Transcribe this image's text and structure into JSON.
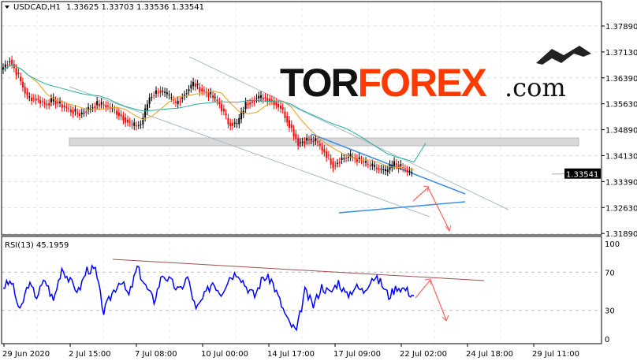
{
  "header": {
    "symbol": "USDCAD,H1",
    "ohlc": "1.33625 1.33703 1.33536 1.33541"
  },
  "rsi_header": "RSI(13) 45.1959",
  "logo": {
    "text_main": "TORFOREX",
    "text_suffix": ".com"
  },
  "colors": {
    "bull": "#000000",
    "bear": "#ff0000",
    "ma_fast": "#e5a020",
    "ma_slow": "#20b0a0",
    "rsi": "#0000ff",
    "arrow": "#ff6060",
    "triangle": "#3a8ee6",
    "channel": "#a8bac8",
    "rsi_trend": "#a05050"
  },
  "chart_data": [
    {
      "type": "line",
      "title": "USDCAD,H1",
      "ylim": [
        1.3189,
        1.3827
      ],
      "y_ticks": [
        "1.37890",
        "1.37130",
        "1.36390",
        "1.35630",
        "1.34890",
        "1.34130",
        "1.33390",
        "1.32630",
        "1.31890"
      ],
      "x_ticks": [
        "29 Jun 2020",
        "2 Jul 15:00",
        "7 Jul 08:00",
        "10 Jul 00:00",
        "14 Jul 17:00",
        "17 Jul 09:00",
        "22 Jul 02:00",
        "24 Jul 18:00",
        "29 Jul 11:00"
      ],
      "current_price": "1.33541",
      "series": [
        {
          "values": [
            1.366,
            1.369,
            1.364,
            1.358,
            1.3575,
            1.356,
            1.357,
            1.3555,
            1.354,
            1.353,
            1.3545,
            1.356,
            1.3555,
            1.354,
            1.352,
            1.3495,
            1.35,
            1.358,
            1.36,
            1.3585,
            1.356,
            1.359,
            1.362,
            1.36,
            1.3585,
            1.356,
            1.3505,
            1.35,
            1.356,
            1.3575,
            1.358,
            1.357,
            1.355,
            1.35,
            1.3445,
            1.3455,
            1.345,
            1.342,
            1.338,
            1.34,
            1.3405,
            1.3395,
            1.338,
            1.337,
            1.336,
            1.3385,
            1.337,
            1.3354
          ]
        }
      ]
    },
    {
      "type": "line",
      "title": "RSI(13) 45.1959",
      "ylim": [
        0,
        100
      ],
      "y_ticks": [
        "100",
        "70",
        "30",
        "0"
      ],
      "series": [
        {
          "values": [
            55,
            60,
            28,
            58,
            45,
            62,
            40,
            75,
            60,
            50,
            73,
            72,
            28,
            48,
            62,
            45,
            75,
            55,
            40,
            68,
            60,
            50,
            65,
            30,
            45,
            60,
            48,
            65,
            70,
            55,
            45,
            65,
            62,
            40,
            18,
            8,
            50,
            35,
            55,
            48,
            60,
            45,
            55,
            50,
            65,
            60,
            45,
            55,
            52,
            45
          ]
        }
      ]
    }
  ]
}
